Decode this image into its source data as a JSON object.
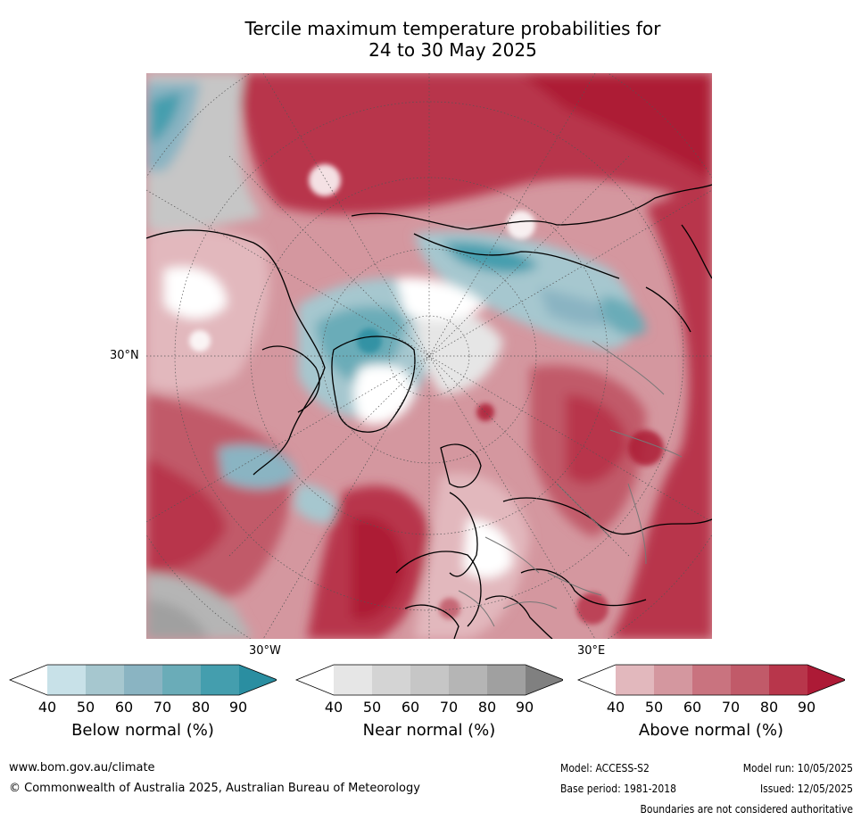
{
  "title": {
    "line1": "Tercile maximum temperature probabilities for",
    "line2": "24 to 30 May 2025"
  },
  "map": {
    "lat_label": "30°N",
    "lon_labels": [
      "30°W",
      "30°E"
    ]
  },
  "colorbars": [
    {
      "label": "Below normal (%)",
      "ticks": [
        "40",
        "50",
        "60",
        "70",
        "80",
        "90"
      ],
      "colors": [
        "#ffffff",
        "#c8e1e8",
        "#a6c7cf",
        "#8ab4c2",
        "#6aacb8",
        "#449eae",
        "#2a8ea1"
      ]
    },
    {
      "label": "Near normal (%)",
      "ticks": [
        "40",
        "50",
        "60",
        "70",
        "80",
        "90"
      ],
      "colors": [
        "#ffffff",
        "#e6e6e6",
        "#d4d4d4",
        "#c6c6c6",
        "#b5b5b5",
        "#a0a0a0",
        "#808080"
      ]
    },
    {
      "label": "Above normal (%)",
      "ticks": [
        "40",
        "50",
        "60",
        "70",
        "80",
        "90"
      ],
      "colors": [
        "#ffffff",
        "#e2b8bd",
        "#d4979f",
        "#c9737f",
        "#c15a69",
        "#b8364b",
        "#ad1a36"
      ]
    }
  ],
  "footer": {
    "website": "www.bom.gov.au/climate",
    "copyright": "© Commonwealth of Australia 2025, Australian Bureau of Meteorology",
    "model": "Model: ACCESS-S2",
    "model_run": "Model run: 10/05/2025",
    "base_period": "Base period: 1981-2018",
    "issued": "Issued: 12/05/2025",
    "disclaimer": "Boundaries are not considered authoritative"
  }
}
